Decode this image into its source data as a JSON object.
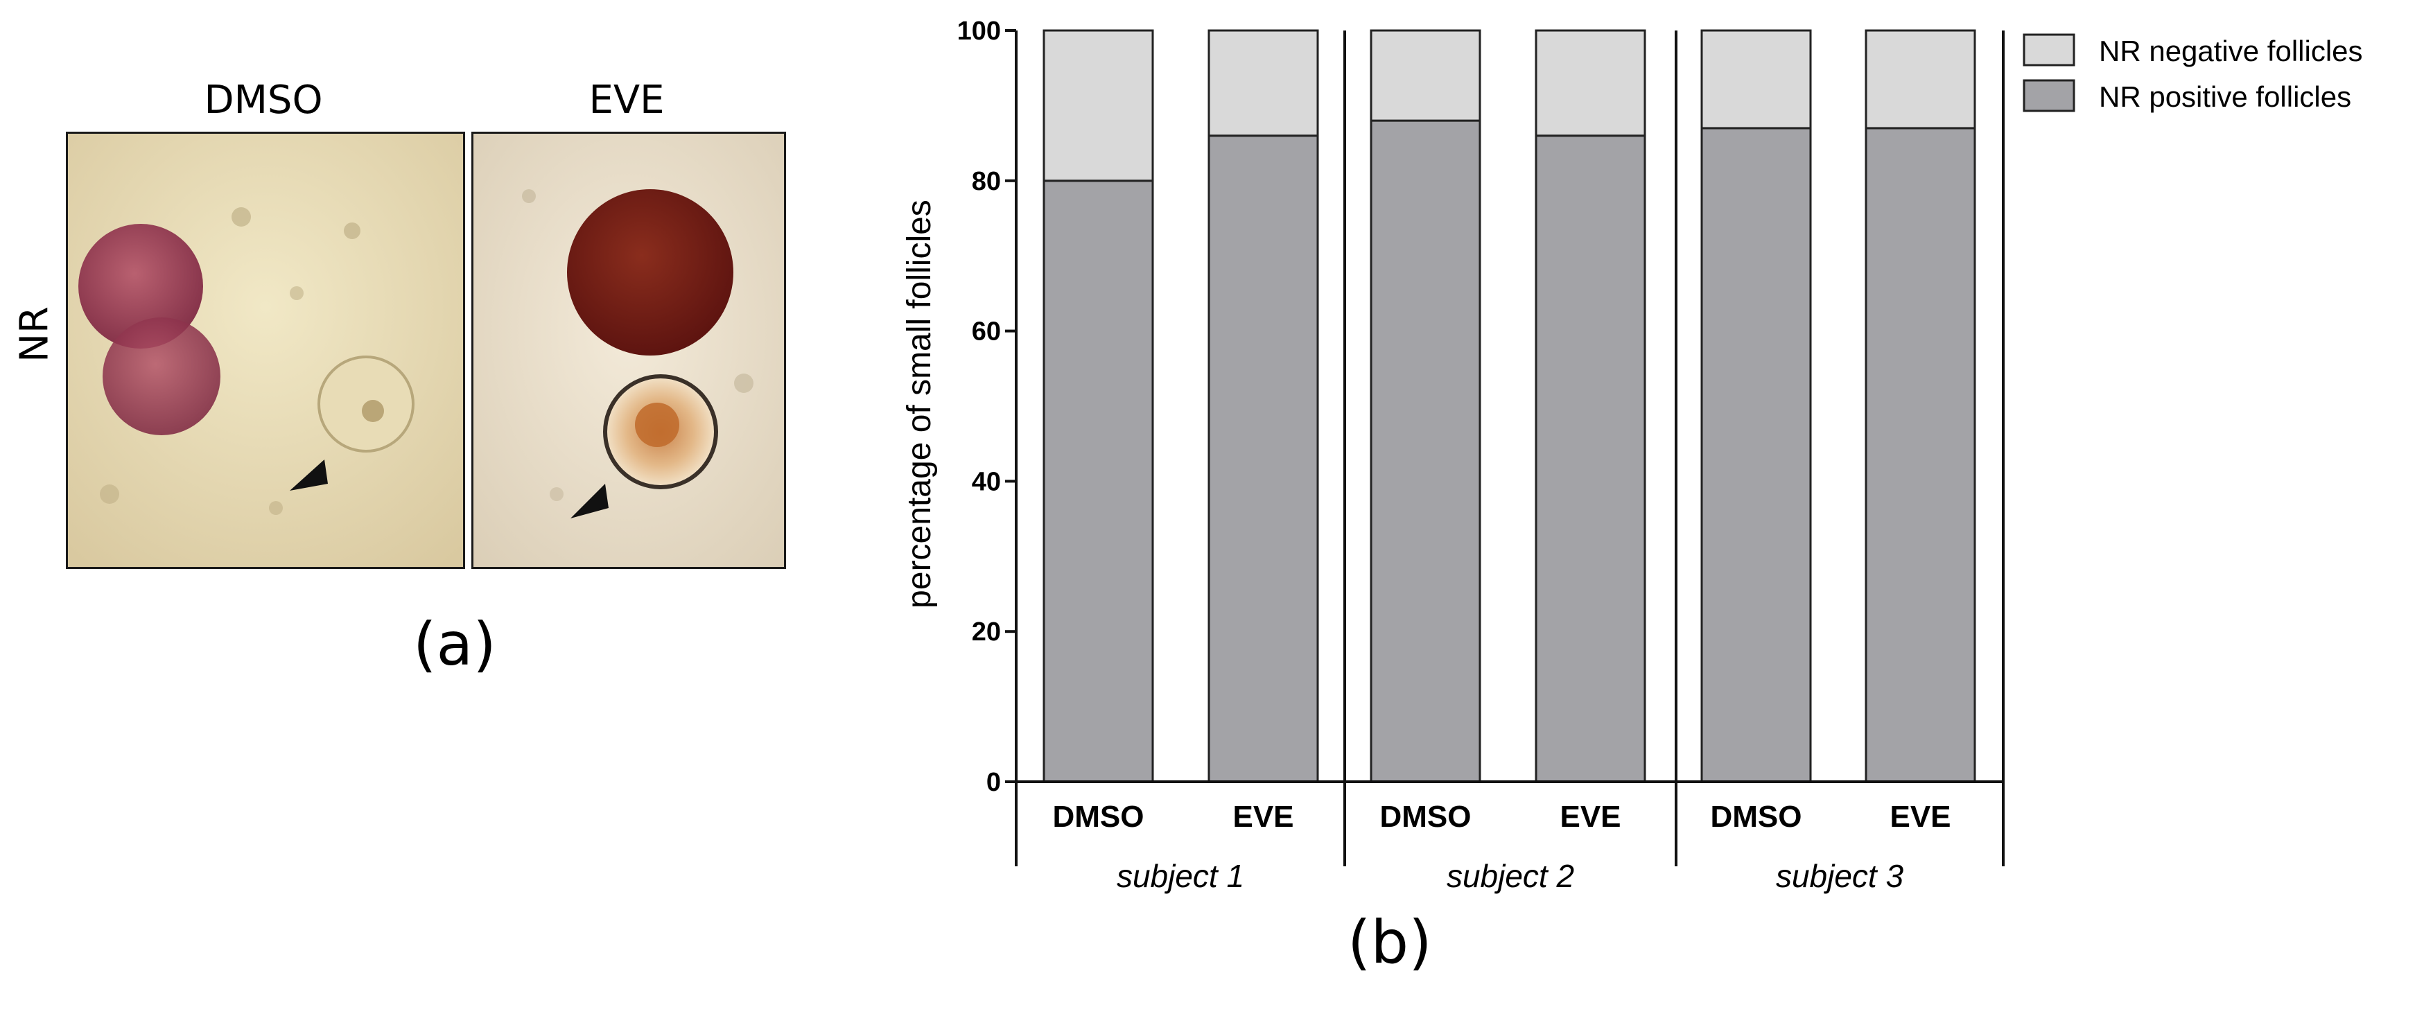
{
  "panel_a": {
    "label": "(a)",
    "row_label": "NR",
    "image_titles": [
      "DMSO",
      "EVE"
    ]
  },
  "panel_b": {
    "label": "(b)"
  },
  "colors": {
    "positive": "#a3a3a7",
    "negative": "#d9d9d9",
    "stroke": "#222222"
  },
  "chart_data": {
    "type": "bar",
    "stacked": true,
    "title": "",
    "xlabel": "",
    "ylabel": "percentage of small follicles",
    "ylim": [
      0,
      100
    ],
    "yticks": [
      0,
      20,
      40,
      60,
      80,
      100
    ],
    "categories": [
      "DMSO",
      "EVE",
      "DMSO",
      "EVE",
      "DMSO",
      "EVE"
    ],
    "groups": [
      "subject 1",
      "subject 2",
      "subject 3"
    ],
    "series": [
      {
        "name": "NR positive  follicles",
        "values": [
          80,
          86,
          88,
          86,
          87,
          87
        ]
      },
      {
        "name": "NR negative follicles",
        "values": [
          20,
          14,
          12,
          14,
          13,
          13
        ]
      }
    ],
    "legend": [
      "NR negative follicles",
      "NR positive  follicles"
    ],
    "legend_position": "top-right"
  }
}
